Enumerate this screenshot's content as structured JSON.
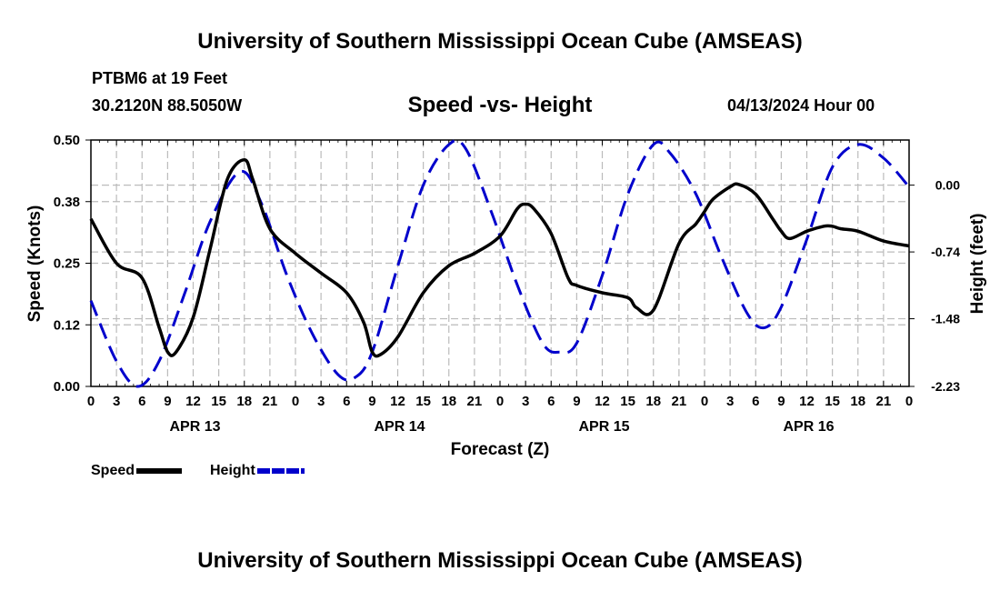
{
  "page": {
    "main_title": "University of Southern Mississippi Ocean Cube (AMSEAS)",
    "station": "PTBM6 at 19 Feet",
    "coords": "30.2120N  88.5050W",
    "subtitle": "Speed -vs- Height",
    "datetime": "04/13/2024 Hour 00",
    "bottom_title": "University of Southern Mississippi Ocean Cube (AMSEAS)"
  },
  "legend": {
    "speed_label": "Speed",
    "height_label": "Height"
  },
  "colors": {
    "speed": "#000000",
    "height": "#0000cc",
    "grid": "#bbbbbb"
  },
  "chart_data": {
    "type": "line",
    "title": "Speed -vs- Height",
    "xlabel": "Forecast (Z)",
    "ylabel": "Speed (Knots)",
    "y2label": "Height (feet)",
    "xlim": [
      0,
      96
    ],
    "ylim": [
      0,
      0.5
    ],
    "y2lim": [
      -2.23,
      0.5
    ],
    "grid": true,
    "x_tick_labels": [
      "0",
      "3",
      "6",
      "9",
      "12",
      "15",
      "18",
      "21",
      "0",
      "3",
      "6",
      "9",
      "12",
      "15",
      "18",
      "21",
      "0",
      "3",
      "6",
      "9",
      "12",
      "15",
      "18",
      "21",
      "0",
      "3",
      "6",
      "9",
      "12",
      "15",
      "18",
      "21",
      "0"
    ],
    "day_labels": [
      {
        "label": "APR 13",
        "hour": 12
      },
      {
        "label": "APR 14",
        "hour": 36
      },
      {
        "label": "APR 15",
        "hour": 60
      },
      {
        "label": "APR 16",
        "hour": 84
      }
    ],
    "y_ticks": [
      "0.00",
      "0.12",
      "0.25",
      "0.38",
      "0.50"
    ],
    "y_tick_values": [
      0,
      0.125,
      0.25,
      0.375,
      0.5
    ],
    "y2_ticks": [
      "0.00",
      "-0.74",
      "-1.48",
      "-2.23"
    ],
    "y2_tick_values": [
      0,
      -0.74,
      -1.48,
      -2.23
    ],
    "series": [
      {
        "name": "Speed",
        "axis": "left",
        "x": [
          0,
          3,
          6,
          8,
          9,
          10,
          12,
          14,
          16,
          18,
          19,
          21,
          24,
          27,
          30,
          32,
          33,
          34,
          36,
          39,
          42,
          45,
          48,
          50,
          51,
          52,
          54,
          56,
          57,
          60,
          63,
          64,
          66,
          69,
          71,
          72,
          73,
          75,
          76,
          78,
          80,
          81,
          82,
          84,
          86,
          87,
          88,
          90,
          93,
          96
        ],
        "values": [
          0.34,
          0.25,
          0.22,
          0.12,
          0.07,
          0.07,
          0.14,
          0.28,
          0.42,
          0.46,
          0.42,
          0.32,
          0.27,
          0.23,
          0.19,
          0.13,
          0.07,
          0.065,
          0.1,
          0.19,
          0.245,
          0.27,
          0.305,
          0.36,
          0.37,
          0.36,
          0.31,
          0.22,
          0.205,
          0.19,
          0.18,
          0.16,
          0.155,
          0.29,
          0.33,
          0.355,
          0.38,
          0.405,
          0.41,
          0.39,
          0.34,
          0.315,
          0.3,
          0.315,
          0.325,
          0.325,
          0.32,
          0.315,
          0.295,
          0.285
        ]
      },
      {
        "name": "Height",
        "axis": "right",
        "x": [
          0,
          3,
          5.5,
          8,
          11,
          14,
          17.5,
          20,
          23,
          26,
          29,
          31,
          33,
          36,
          39,
          42,
          44,
          47,
          50,
          53,
          55,
          57,
          60,
          63,
          66,
          68,
          71,
          74,
          77,
          79,
          81,
          84,
          87,
          90,
          93,
          96
        ],
        "values": [
          -1.28,
          -1.95,
          -2.23,
          -1.95,
          -1.2,
          -0.4,
          0.15,
          -0.2,
          -1.0,
          -1.65,
          -2.1,
          -2.13,
          -1.85,
          -0.9,
          0.0,
          0.45,
          0.4,
          -0.3,
          -1.1,
          -1.75,
          -1.85,
          -1.75,
          -1.0,
          -0.1,
          0.45,
          0.35,
          -0.1,
          -0.8,
          -1.42,
          -1.58,
          -1.35,
          -0.6,
          0.2,
          0.45,
          0.3,
          -0.02
        ]
      }
    ]
  }
}
